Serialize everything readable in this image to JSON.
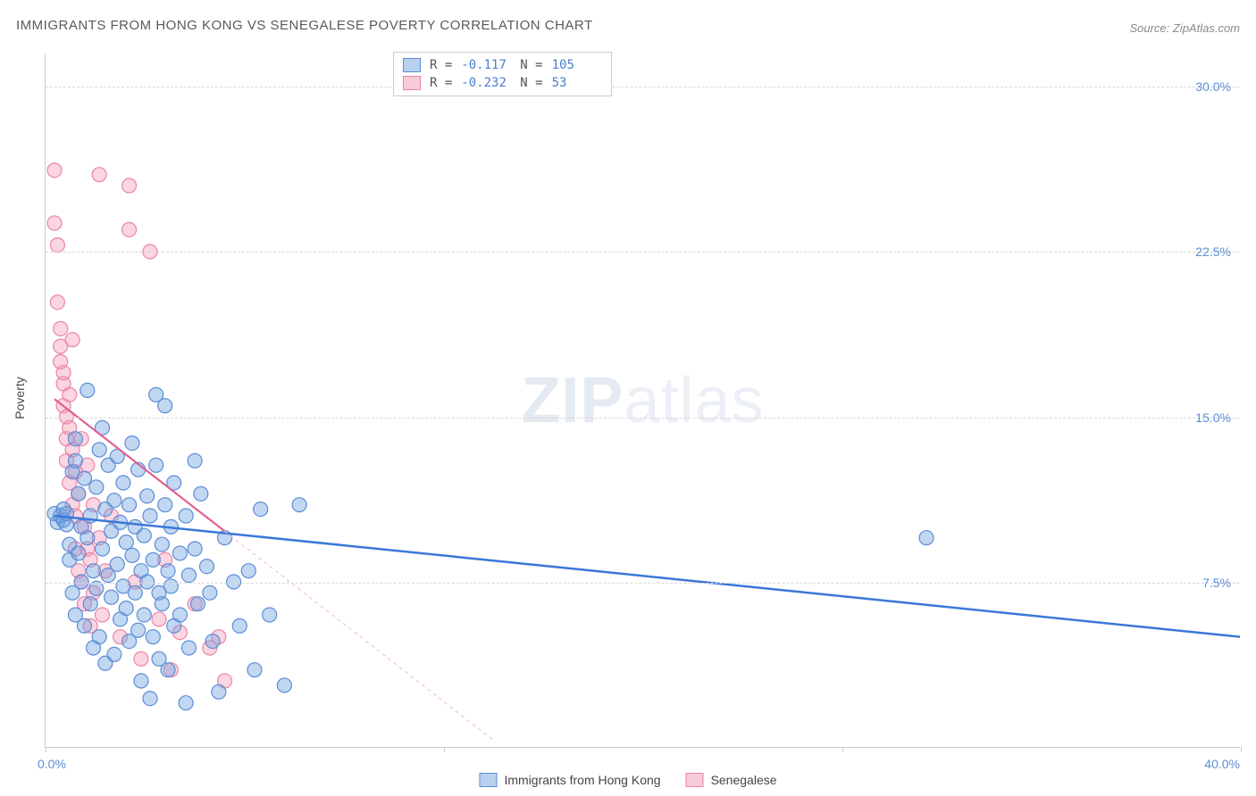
{
  "title": "IMMIGRANTS FROM HONG KONG VS SENEGALESE POVERTY CORRELATION CHART",
  "source": "Source: ZipAtlas.com",
  "watermark": {
    "bold": "ZIP",
    "rest": "atlas"
  },
  "y_axis": {
    "title": "Poverty"
  },
  "x_axis": {
    "min_label": "0.0%",
    "max_label": "40.0%"
  },
  "legend_top": {
    "rows": [
      {
        "swatch": "blue",
        "r_label": "R =",
        "r_val": "-0.117",
        "n_label": "N =",
        "n_val": "105"
      },
      {
        "swatch": "pink",
        "r_label": "R =",
        "r_val": "-0.232",
        "n_label": "N =",
        "n_val": "53"
      }
    ]
  },
  "legend_bottom": {
    "items": [
      {
        "swatch": "blue",
        "label": "Immigrants from Hong Kong"
      },
      {
        "swatch": "pink",
        "label": "Senegalese"
      }
    ]
  },
  "chart": {
    "type": "scatter",
    "xlim": [
      0,
      40
    ],
    "ylim": [
      0,
      31.5
    ],
    "y_ticks": [
      7.5,
      15.0,
      22.5,
      30.0
    ],
    "y_tick_labels": [
      "7.5%",
      "15.0%",
      "22.5%",
      "30.0%"
    ],
    "x_tick_positions": [
      0,
      13.33,
      26.67,
      40
    ],
    "background_color": "#ffffff",
    "grid_color": "#d8d8d8",
    "marker_radius": 8,
    "marker_stroke_width": 1.2,
    "series": [
      {
        "name": "Immigrants from Hong Kong",
        "fill": "rgba(110,160,225,0.42)",
        "stroke": "#5b8dd6",
        "points": [
          [
            0.3,
            10.6
          ],
          [
            0.4,
            10.2
          ],
          [
            0.5,
            10.5
          ],
          [
            0.6,
            10.3
          ],
          [
            0.6,
            10.8
          ],
          [
            0.7,
            10.1
          ],
          [
            0.7,
            10.6
          ],
          [
            0.8,
            8.5
          ],
          [
            0.8,
            9.2
          ],
          [
            0.9,
            7.0
          ],
          [
            0.9,
            12.5
          ],
          [
            1.0,
            6.0
          ],
          [
            1.0,
            13.0
          ],
          [
            1.0,
            14.0
          ],
          [
            1.1,
            8.8
          ],
          [
            1.1,
            11.5
          ],
          [
            1.2,
            7.5
          ],
          [
            1.2,
            10.0
          ],
          [
            1.3,
            5.5
          ],
          [
            1.3,
            12.2
          ],
          [
            1.4,
            9.5
          ],
          [
            1.4,
            16.2
          ],
          [
            1.5,
            6.5
          ],
          [
            1.5,
            10.5
          ],
          [
            1.6,
            4.5
          ],
          [
            1.6,
            8.0
          ],
          [
            1.7,
            11.8
          ],
          [
            1.7,
            7.2
          ],
          [
            1.8,
            13.5
          ],
          [
            1.8,
            5.0
          ],
          [
            1.9,
            9.0
          ],
          [
            1.9,
            14.5
          ],
          [
            2.0,
            3.8
          ],
          [
            2.0,
            10.8
          ],
          [
            2.1,
            7.8
          ],
          [
            2.1,
            12.8
          ],
          [
            2.2,
            6.8
          ],
          [
            2.2,
            9.8
          ],
          [
            2.3,
            11.2
          ],
          [
            2.3,
            4.2
          ],
          [
            2.4,
            8.3
          ],
          [
            2.4,
            13.2
          ],
          [
            2.5,
            5.8
          ],
          [
            2.5,
            10.2
          ],
          [
            2.6,
            7.3
          ],
          [
            2.6,
            12.0
          ],
          [
            2.7,
            9.3
          ],
          [
            2.7,
            6.3
          ],
          [
            2.8,
            11.0
          ],
          [
            2.8,
            4.8
          ],
          [
            2.9,
            8.7
          ],
          [
            2.9,
            13.8
          ],
          [
            3.0,
            7.0
          ],
          [
            3.0,
            10.0
          ],
          [
            3.1,
            5.3
          ],
          [
            3.1,
            12.6
          ],
          [
            3.2,
            8.0
          ],
          [
            3.2,
            3.0
          ],
          [
            3.3,
            9.6
          ],
          [
            3.3,
            6.0
          ],
          [
            3.4,
            11.4
          ],
          [
            3.4,
            7.5
          ],
          [
            3.5,
            2.2
          ],
          [
            3.5,
            10.5
          ],
          [
            3.6,
            8.5
          ],
          [
            3.6,
            5.0
          ],
          [
            3.7,
            16.0
          ],
          [
            3.7,
            12.8
          ],
          [
            3.8,
            7.0
          ],
          [
            3.8,
            4.0
          ],
          [
            3.9,
            9.2
          ],
          [
            3.9,
            6.5
          ],
          [
            4.0,
            15.5
          ],
          [
            4.0,
            11.0
          ],
          [
            4.1,
            8.0
          ],
          [
            4.1,
            3.5
          ],
          [
            4.2,
            10.0
          ],
          [
            4.2,
            7.3
          ],
          [
            4.3,
            5.5
          ],
          [
            4.3,
            12.0
          ],
          [
            4.5,
            8.8
          ],
          [
            4.5,
            6.0
          ],
          [
            4.7,
            2.0
          ],
          [
            4.7,
            10.5
          ],
          [
            4.8,
            7.8
          ],
          [
            4.8,
            4.5
          ],
          [
            5.0,
            9.0
          ],
          [
            5.0,
            13.0
          ],
          [
            5.1,
            6.5
          ],
          [
            5.2,
            11.5
          ],
          [
            5.4,
            8.2
          ],
          [
            5.5,
            7.0
          ],
          [
            5.6,
            4.8
          ],
          [
            5.8,
            2.5
          ],
          [
            6.0,
            9.5
          ],
          [
            6.3,
            7.5
          ],
          [
            6.5,
            5.5
          ],
          [
            6.8,
            8.0
          ],
          [
            7.0,
            3.5
          ],
          [
            7.2,
            10.8
          ],
          [
            7.5,
            6.0
          ],
          [
            8.0,
            2.8
          ],
          [
            8.5,
            11.0
          ],
          [
            29.5,
            9.5
          ]
        ],
        "regression": {
          "x1": 0.3,
          "y1": 10.5,
          "x2": 40,
          "y2": 5.0,
          "stroke": "#3a78d8",
          "width": 2.5,
          "dash": ""
        }
      },
      {
        "name": "Senegalese",
        "fill": "rgba(245,150,180,0.40)",
        "stroke": "#e985a5",
        "points": [
          [
            0.3,
            26.2
          ],
          [
            0.3,
            23.8
          ],
          [
            0.4,
            22.8
          ],
          [
            0.4,
            20.2
          ],
          [
            0.5,
            19.0
          ],
          [
            0.5,
            17.5
          ],
          [
            0.5,
            18.2
          ],
          [
            0.6,
            15.5
          ],
          [
            0.6,
            16.5
          ],
          [
            0.6,
            17.0
          ],
          [
            0.7,
            14.0
          ],
          [
            0.7,
            15.0
          ],
          [
            0.7,
            13.0
          ],
          [
            0.8,
            12.0
          ],
          [
            0.8,
            14.5
          ],
          [
            0.8,
            16.0
          ],
          [
            0.9,
            11.0
          ],
          [
            0.9,
            13.5
          ],
          [
            0.9,
            18.5
          ],
          [
            1.0,
            10.5
          ],
          [
            1.0,
            12.5
          ],
          [
            1.0,
            9.0
          ],
          [
            1.1,
            8.0
          ],
          [
            1.1,
            11.5
          ],
          [
            1.2,
            14.0
          ],
          [
            1.2,
            7.5
          ],
          [
            1.3,
            10.0
          ],
          [
            1.3,
            6.5
          ],
          [
            1.4,
            9.0
          ],
          [
            1.4,
            12.8
          ],
          [
            1.5,
            8.5
          ],
          [
            1.5,
            5.5
          ],
          [
            1.6,
            11.0
          ],
          [
            1.6,
            7.0
          ],
          [
            1.8,
            26.0
          ],
          [
            1.8,
            9.5
          ],
          [
            1.9,
            6.0
          ],
          [
            2.0,
            8.0
          ],
          [
            2.2,
            10.5
          ],
          [
            2.5,
            5.0
          ],
          [
            2.8,
            23.5
          ],
          [
            2.8,
            25.5
          ],
          [
            3.0,
            7.5
          ],
          [
            3.2,
            4.0
          ],
          [
            3.5,
            22.5
          ],
          [
            3.8,
            5.8
          ],
          [
            4.0,
            8.5
          ],
          [
            4.2,
            3.5
          ],
          [
            4.5,
            5.2
          ],
          [
            5.0,
            6.5
          ],
          [
            5.5,
            4.5
          ],
          [
            5.8,
            5.0
          ],
          [
            6.0,
            3.0
          ]
        ],
        "regression": {
          "x1": 0.3,
          "y1": 15.8,
          "x2": 6.0,
          "y2": 9.8,
          "stroke": "#e06090",
          "width": 2.2,
          "dash": ""
        },
        "regression_ext": {
          "x1": 6.0,
          "y1": 9.8,
          "x2": 15.0,
          "y2": 0.3,
          "stroke": "#f0b8c8",
          "width": 1,
          "dash": "4,4"
        }
      }
    ]
  }
}
